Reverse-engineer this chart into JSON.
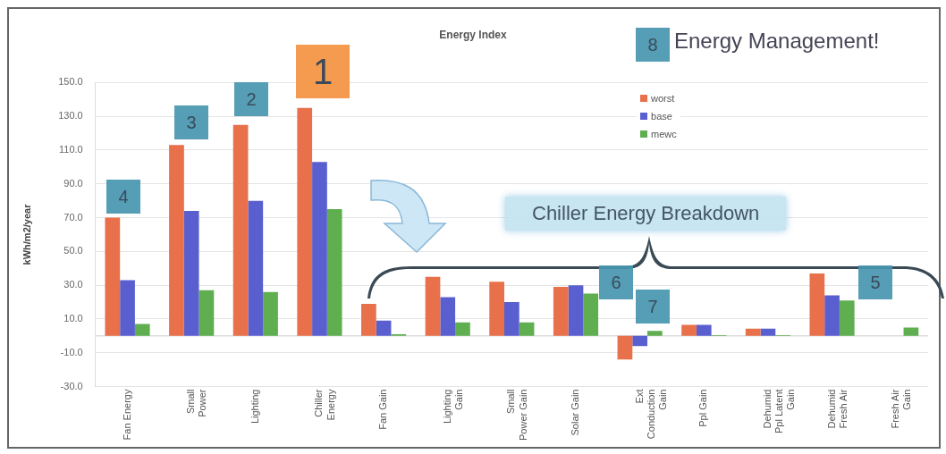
{
  "chart_data": {
    "type": "bar",
    "title": "Energy Index",
    "ylabel": "kWh/m2/year",
    "categories": [
      "Fan Energy",
      "Small Power",
      "Lighting",
      "Chiller Energy",
      "Fan Gain",
      "Lighting Gain",
      "Small Power Gain",
      "Solar Gain",
      "Ext Conduction Gain",
      "Ppl Gain",
      "Dehumid Ppl Latent Gain",
      "Dehumid Fresh Air",
      "Fresh Air Gain"
    ],
    "series": [
      {
        "name": "worst",
        "color": "#e8704a",
        "values": [
          70,
          113,
          125,
          135,
          19,
          35,
          32,
          29,
          -14,
          6.5,
          4.3,
          37,
          null
        ]
      },
      {
        "name": "base",
        "color": "#5a5fd0",
        "values": [
          33,
          74,
          80,
          103,
          9,
          23,
          20,
          30,
          -6,
          6.5,
          4.3,
          24,
          null
        ]
      },
      {
        "name": "mewc",
        "color": "#5fae4f",
        "values": [
          7,
          27,
          26,
          75,
          1,
          8,
          8,
          25,
          3,
          0.5,
          0.5,
          21,
          5
        ]
      }
    ],
    "ylim": [
      -30,
      150
    ],
    "yticks": [
      {
        "value": -30,
        "label": "-30.0"
      },
      {
        "value": -10,
        "label": "-10.0"
      },
      {
        "value": 10,
        "label": "10.0"
      },
      {
        "value": 30,
        "label": "30.0"
      },
      {
        "value": 50,
        "label": "50.0"
      },
      {
        "value": 70,
        "label": "70.0"
      },
      {
        "value": 90,
        "label": "90.0"
      },
      {
        "value": 110,
        "label": "110.0"
      },
      {
        "value": 130,
        "label": "130.0"
      },
      {
        "value": 150,
        "label": "150.0"
      }
    ],
    "grid": "y",
    "legend": "top right",
    "annotations": [
      "1",
      "2",
      "3",
      "4",
      "5",
      "6",
      "7",
      "8",
      "Energy Management!",
      "Chiller Energy Breakdown"
    ]
  }
}
